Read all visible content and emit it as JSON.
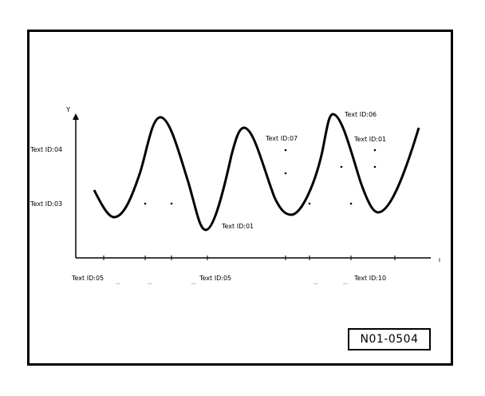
{
  "figure": {
    "id_label": "N01-0504",
    "y_axis_label": "Y",
    "x_axis_label": "t",
    "y_ticks": [
      "Text ID:04",
      "Text ID:03"
    ],
    "callouts": [
      "Text ID:07",
      "Text ID:06",
      "Text ID:01",
      "Text ID:01"
    ],
    "x_ticks": [
      "Text ID:05",
      "Text ID:05",
      "Text ID:10"
    ],
    "small_ticks": [
      "...",
      "...",
      "...",
      "...",
      "..."
    ],
    "curve": {
      "type": "damped-sine",
      "x_range": [
        0,
        1
      ],
      "y_range": [
        0,
        1
      ],
      "points": [
        [
          0.0,
          0.42
        ],
        [
          0.05,
          0.25
        ],
        [
          0.1,
          0.4
        ],
        [
          0.2,
          0.92
        ],
        [
          0.3,
          0.4
        ],
        [
          0.38,
          0.18
        ],
        [
          0.47,
          0.7
        ],
        [
          0.52,
          0.82
        ],
        [
          0.62,
          0.3
        ],
        [
          0.7,
          0.55
        ],
        [
          0.75,
          0.95
        ],
        [
          0.85,
          0.45
        ],
        [
          0.91,
          0.28
        ],
        [
          1.0,
          0.92
        ]
      ]
    },
    "colors": {
      "line": "#000000",
      "background": "#ffffff"
    }
  }
}
